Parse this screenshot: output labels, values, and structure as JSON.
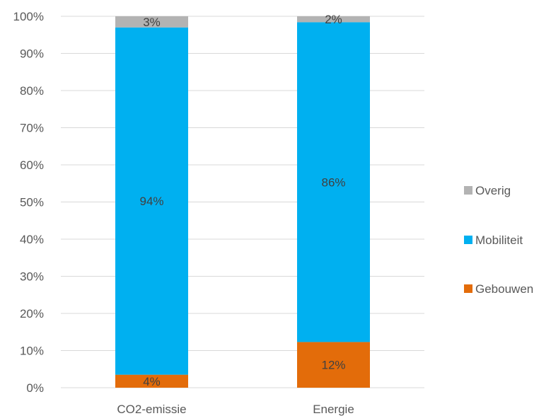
{
  "chart_data": {
    "type": "bar",
    "stacked": true,
    "categories": [
      "CO2-emissie",
      "Energie"
    ],
    "series": [
      {
        "name": "Gebouwen",
        "color": "#E36C0A",
        "values": [
          3.5,
          12.3
        ],
        "labels": [
          "4%",
          "12%"
        ]
      },
      {
        "name": "Mobiliteit",
        "color": "#00B0F0",
        "values": [
          93.5,
          86.1
        ],
        "labels": [
          "94%",
          "86%"
        ]
      },
      {
        "name": "Overig",
        "color": "#B3B3B3",
        "values": [
          3.0,
          1.6
        ],
        "labels": [
          "3%",
          "2%"
        ]
      }
    ],
    "yticks": [
      "0%",
      "10%",
      "20%",
      "30%",
      "40%",
      "50%",
      "60%",
      "70%",
      "80%",
      "90%",
      "100%"
    ],
    "ylim": [
      0,
      100
    ],
    "grid": true,
    "legend_position": "right",
    "legend_order": [
      "Overig",
      "Mobiliteit",
      "Gebouwen"
    ]
  }
}
